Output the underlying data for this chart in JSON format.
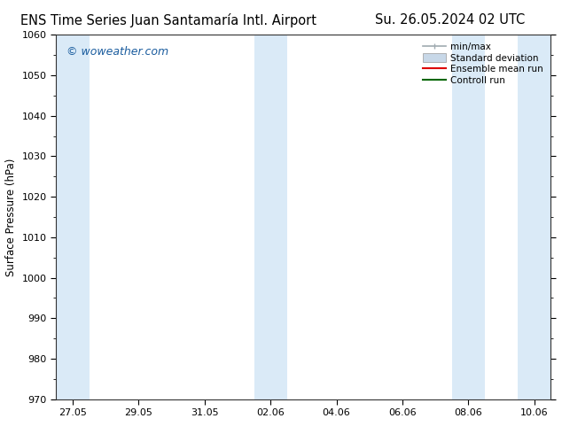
{
  "title_left": "ENS Time Series Juan Santamaría Intl. Airport",
  "title_right": "Su. 26.05.2024 02 UTC",
  "ylabel": "Surface Pressure (hPa)",
  "ylim": [
    970,
    1060
  ],
  "yticks": [
    970,
    980,
    990,
    1000,
    1010,
    1020,
    1030,
    1040,
    1050,
    1060
  ],
  "xtick_labels": [
    "27.05",
    "29.05",
    "31.05",
    "02.06",
    "04.06",
    "06.06",
    "08.06",
    "10.06"
  ],
  "xtick_positions": [
    0,
    2,
    4,
    6,
    8,
    10,
    12,
    14
  ],
  "xlim": [
    -0.5,
    14.5
  ],
  "blue_bands": [
    {
      "xmin": -0.5,
      "xmax": 0.5
    },
    {
      "xmin": 5.5,
      "xmax": 6.5
    },
    {
      "xmin": 11.5,
      "xmax": 12.5
    },
    {
      "xmin": 13.5,
      "xmax": 14.5
    }
  ],
  "blue_band_color": "#daeaf7",
  "background_color": "#ffffff",
  "watermark": "© woweather.com",
  "watermark_color": "#1a5c9e",
  "legend_items": [
    {
      "label": "min/max",
      "color": "#a0aab0",
      "style": "errorbar"
    },
    {
      "label": "Standard deviation",
      "color": "#c8d8e8",
      "style": "fill"
    },
    {
      "label": "Ensemble mean run",
      "color": "#dd0000",
      "style": "line"
    },
    {
      "label": "Controll run",
      "color": "#006600",
      "style": "line"
    }
  ],
  "title_fontsize": 10.5,
  "axis_fontsize": 8.5,
  "tick_fontsize": 8,
  "legend_fontsize": 7.5,
  "watermark_fontsize": 9,
  "fig_width": 6.34,
  "fig_height": 4.9,
  "dpi": 100
}
